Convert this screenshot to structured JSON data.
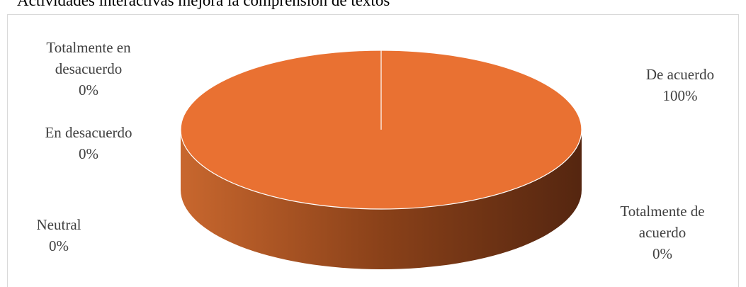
{
  "chart_data": {
    "type": "pie",
    "title": "Actividades interactivas mejora la comprensión de textos",
    "categories": [
      "Totalmente en desacuerdo",
      "En desacuerdo",
      "Neutral",
      "De acuerdo",
      "Totalmente de acuerdo"
    ],
    "values": [
      0,
      0,
      0,
      100,
      0
    ],
    "value_labels": [
      "0%",
      "0%",
      "0%",
      "100%",
      "0%"
    ],
    "colors": [
      "#4472c4",
      "#a5a5a5",
      "#ffc000",
      "#e97132",
      "#5b9bd5"
    ]
  }
}
